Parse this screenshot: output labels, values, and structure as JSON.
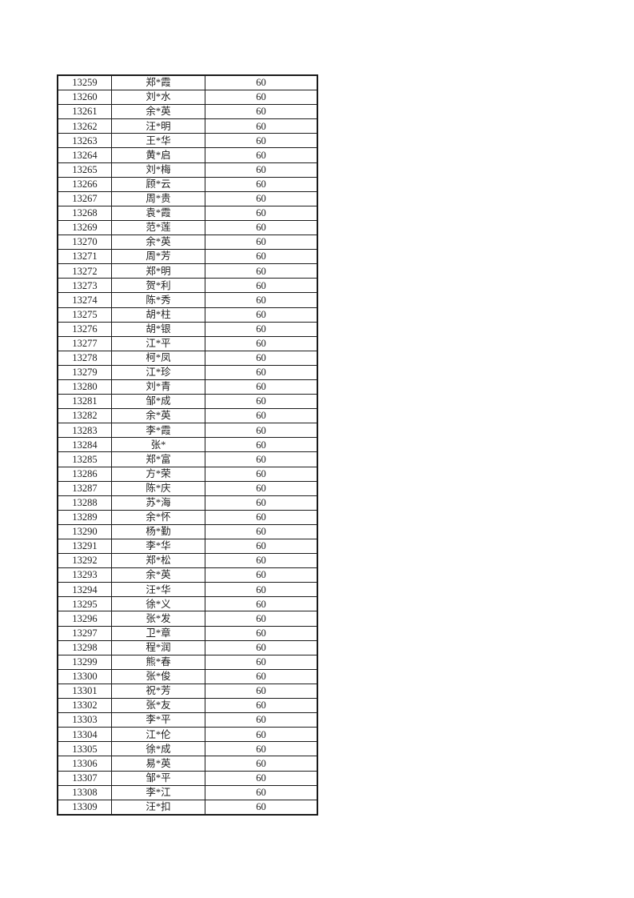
{
  "table": {
    "score_value": "60",
    "rows": [
      {
        "id": "13259",
        "name": "郑*霞",
        "score": "60"
      },
      {
        "id": "13260",
        "name": "刘*水",
        "score": "60"
      },
      {
        "id": "13261",
        "name": "余*英",
        "score": "60"
      },
      {
        "id": "13262",
        "name": "汪*明",
        "score": "60"
      },
      {
        "id": "13263",
        "name": "王*华",
        "score": "60"
      },
      {
        "id": "13264",
        "name": "黄*启",
        "score": "60"
      },
      {
        "id": "13265",
        "name": "刘*梅",
        "score": "60"
      },
      {
        "id": "13266",
        "name": "顾*云",
        "score": "60"
      },
      {
        "id": "13267",
        "name": "周*贵",
        "score": "60"
      },
      {
        "id": "13268",
        "name": "袁*霞",
        "score": "60"
      },
      {
        "id": "13269",
        "name": "范*莲",
        "score": "60"
      },
      {
        "id": "13270",
        "name": "余*英",
        "score": "60"
      },
      {
        "id": "13271",
        "name": "周*芳",
        "score": "60"
      },
      {
        "id": "13272",
        "name": "郑*明",
        "score": "60"
      },
      {
        "id": "13273",
        "name": "贺*利",
        "score": "60"
      },
      {
        "id": "13274",
        "name": "陈*秀",
        "score": "60"
      },
      {
        "id": "13275",
        "name": "胡*柱",
        "score": "60"
      },
      {
        "id": "13276",
        "name": "胡*银",
        "score": "60"
      },
      {
        "id": "13277",
        "name": "江*平",
        "score": "60"
      },
      {
        "id": "13278",
        "name": "柯*凤",
        "score": "60"
      },
      {
        "id": "13279",
        "name": "江*珍",
        "score": "60"
      },
      {
        "id": "13280",
        "name": "刘*青",
        "score": "60"
      },
      {
        "id": "13281",
        "name": "邹*成",
        "score": "60"
      },
      {
        "id": "13282",
        "name": "余*英",
        "score": "60"
      },
      {
        "id": "13283",
        "name": "李*霞",
        "score": "60"
      },
      {
        "id": "13284",
        "name": "张*",
        "score": "60"
      },
      {
        "id": "13285",
        "name": "郑*富",
        "score": "60"
      },
      {
        "id": "13286",
        "name": "方*荣",
        "score": "60"
      },
      {
        "id": "13287",
        "name": "陈*庆",
        "score": "60"
      },
      {
        "id": "13288",
        "name": "苏*海",
        "score": "60"
      },
      {
        "id": "13289",
        "name": "余*怀",
        "score": "60"
      },
      {
        "id": "13290",
        "name": "杨*勤",
        "score": "60"
      },
      {
        "id": "13291",
        "name": "李*华",
        "score": "60"
      },
      {
        "id": "13292",
        "name": "郑*松",
        "score": "60"
      },
      {
        "id": "13293",
        "name": "余*英",
        "score": "60"
      },
      {
        "id": "13294",
        "name": "汪*华",
        "score": "60"
      },
      {
        "id": "13295",
        "name": "徐*义",
        "score": "60"
      },
      {
        "id": "13296",
        "name": "张*发",
        "score": "60"
      },
      {
        "id": "13297",
        "name": "卫*章",
        "score": "60"
      },
      {
        "id": "13298",
        "name": "程*润",
        "score": "60"
      },
      {
        "id": "13299",
        "name": "熊*春",
        "score": "60"
      },
      {
        "id": "13300",
        "name": "张*俊",
        "score": "60"
      },
      {
        "id": "13301",
        "name": "祝*芳",
        "score": "60"
      },
      {
        "id": "13302",
        "name": "张*友",
        "score": "60"
      },
      {
        "id": "13303",
        "name": "李*平",
        "score": "60"
      },
      {
        "id": "13304",
        "name": "江*伦",
        "score": "60"
      },
      {
        "id": "13305",
        "name": "徐*成",
        "score": "60"
      },
      {
        "id": "13306",
        "name": "易*英",
        "score": "60"
      },
      {
        "id": "13307",
        "name": "邹*平",
        "score": "60"
      },
      {
        "id": "13308",
        "name": "李*江",
        "score": "60"
      },
      {
        "id": "13309",
        "name": "汪*扣",
        "score": "60"
      }
    ],
    "colors": {
      "border": "#1a1a1a",
      "text": "#1f1f1f",
      "page_background": "#ffffff"
    }
  }
}
